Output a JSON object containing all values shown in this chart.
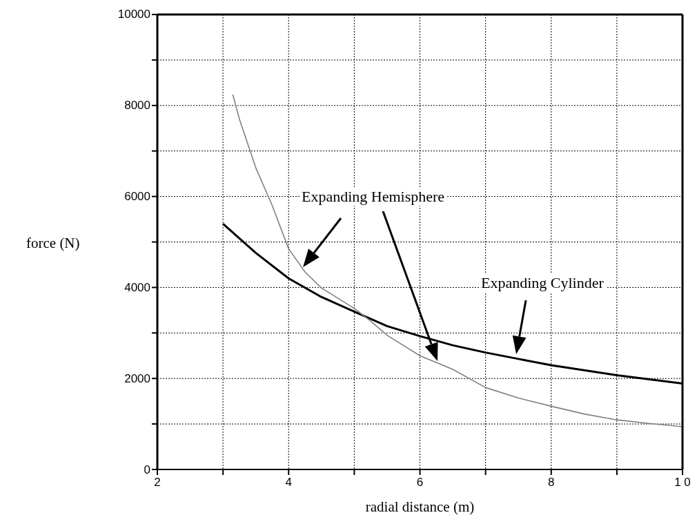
{
  "chart_data": {
    "type": "line",
    "xlabel": "radial distance (m)",
    "ylabel": "force (N)",
    "xlim": [
      2,
      10
    ],
    "xticks": [
      2,
      {
        "value": 3,
        "label": null
      },
      4,
      {
        "value": 5,
        "label": null
      },
      6,
      {
        "value": 7,
        "label": null
      },
      8,
      {
        "value": 9,
        "label": null
      },
      {
        "value": 10,
        "label": "1 0"
      }
    ],
    "ylim": [
      0,
      10000
    ],
    "yticks": [
      0,
      {
        "value": 1000,
        "label": null
      },
      2000,
      {
        "value": 3000,
        "label": null
      },
      4000,
      {
        "value": 5000,
        "label": null
      },
      6000,
      {
        "value": 7000,
        "label": null
      },
      8000,
      {
        "value": 9000,
        "label": null
      },
      10000
    ],
    "grid": true,
    "marker": "none",
    "annotations": [
      "Expanding Hemisphere",
      "Expanding Cylinder"
    ],
    "series": [
      {
        "color": "#000000",
        "x": [
          3,
          3.5,
          4,
          4.5,
          5,
          5.5,
          6,
          6.5,
          7,
          7.5,
          8,
          8.5,
          9,
          9.5,
          10
        ],
        "values": [
          5400,
          4760,
          4200,
          3790,
          3470,
          3150,
          2930,
          2730,
          2570,
          2430,
          2290,
          2180,
          2070,
          1980,
          1890
        ]
      },
      {
        "color": "#808080",
        "x": [
          3.15,
          3.25,
          3.5,
          3.75,
          4,
          4.25,
          4.5,
          5,
          5.25,
          5.5,
          6,
          6.5,
          7,
          7.5,
          8,
          8.5,
          9,
          9.5,
          10
        ],
        "values": [
          8240,
          7700,
          6630,
          5800,
          4850,
          4340,
          3990,
          3540,
          3260,
          2950,
          2500,
          2200,
          1800,
          1570,
          1390,
          1220,
          1090,
          1010,
          940
        ]
      }
    ]
  }
}
